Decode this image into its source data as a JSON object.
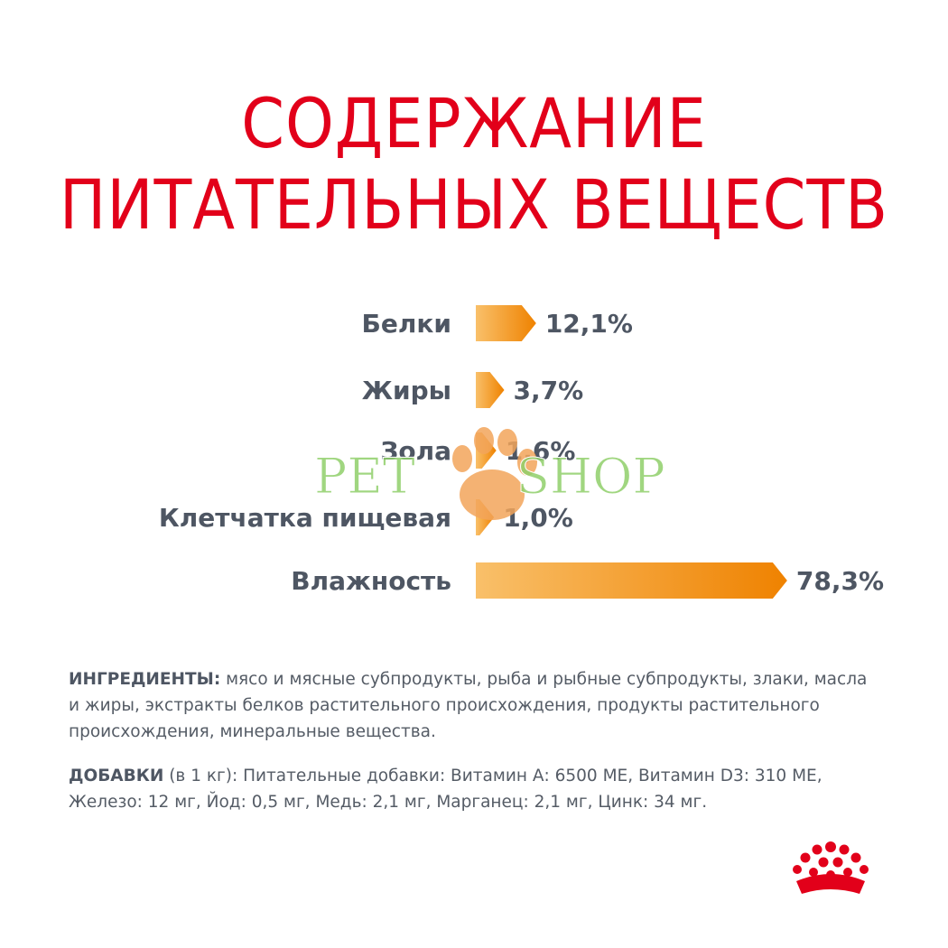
{
  "title": {
    "line1": "СОДЕРЖАНИЕ",
    "line2": "ПИТАТЕЛЬНЫХ ВЕЩЕСТВ"
  },
  "chart_data": {
    "type": "bar",
    "orientation": "horizontal",
    "categories": [
      "Белки",
      "Жиры",
      "Зола",
      "Клетчатка пищевая",
      "Влажность"
    ],
    "values": [
      12.1,
      3.7,
      1.6,
      1.0,
      78.3
    ],
    "value_labels": [
      "12,1%",
      "3,7%",
      "1,6%",
      "1,0%",
      "78,3%"
    ],
    "unit": "%",
    "colors": {
      "bar_start": "#f9c06a",
      "bar_end": "#ef8200"
    }
  },
  "ingredients": {
    "label": "ИНГРЕДИЕНТЫ:",
    "text": " мясо и мясные субпродукты, рыба и рыбные субпродукты, злаки, масла и жиры, экстракты белков растительного происхождения, продукты растительного происхождения, минеральные вещества."
  },
  "additives": {
    "label": "ДОБАВКИ",
    "text": " (в 1 кг): Питательные добавки: Витамин А: 6500 МЕ, Витамин D3: 310 МЕ, Железо: 12 мг, Йод: 0,5 мг, Медь: 2,1 мг, Марганец: 2,1 мг, Цинк: 34 мг."
  },
  "watermark": {
    "left_text": "PET",
    "right_text": "SHOP",
    "icon": "paw-icon"
  },
  "brand": {
    "icon": "crown-logo-icon",
    "color": "#e2001a"
  }
}
